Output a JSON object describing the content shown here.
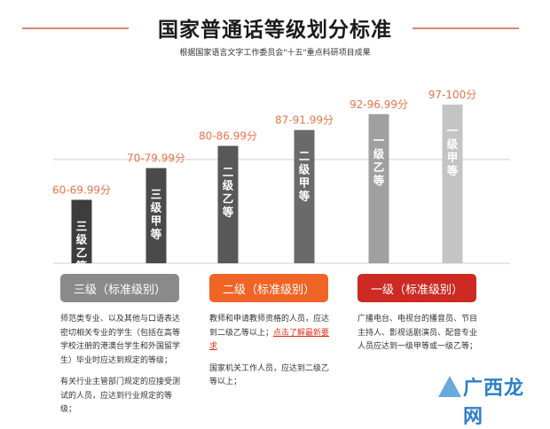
{
  "header": {
    "title": "国家普通话等级划分标准",
    "subtitle": "根据国家语言文字工作委员会\"十五\"重点科研项目成果"
  },
  "chart_data": {
    "type": "bar",
    "categories": [
      "三级乙等",
      "三级甲等",
      "二级乙等",
      "二级甲等",
      "一级乙等",
      "一级甲等"
    ],
    "value_labels": [
      "60-69.99分",
      "70-79.99分",
      "80-86.99分",
      "87-91.99分",
      "92-96.99分",
      "97-100分"
    ],
    "ranges": [
      [
        60,
        69.99
      ],
      [
        70,
        79.99
      ],
      [
        80,
        86.99
      ],
      [
        87,
        91.99
      ],
      [
        92,
        96.99
      ],
      [
        97,
        100
      ]
    ],
    "colors": [
      "#3d3d3d",
      "#4a4a4a",
      "#585858",
      "#6a6a6a",
      "#a0a0a0",
      "#c4c4c4"
    ],
    "label_color": "#e8744a"
  },
  "levels": [
    {
      "label": "三级（标准级别）",
      "color": "#8a8a8a"
    },
    {
      "label": "二级（标准级别）",
      "color": "#f06426"
    },
    {
      "label": "一级（标准级别）",
      "color": "#cc2a22"
    }
  ],
  "descriptions": {
    "level3": {
      "p1": "师范类专业、以及其他与口语表达密切相关专业的学生（包括在高等学校注册的港澳台学生和外国留学生）毕业时应达到规定的等级；",
      "p2": "有关行业主管部门规定的应接受测试的人员，应达到行业规定的等级；"
    },
    "level2": {
      "p1_text": "教师和申请教师资格的人员，应达到二级乙等以上；",
      "p1_link": "点击了解最新要求",
      "p2": "国家机关工作人员，应达到二级乙等以上；"
    },
    "level1": {
      "p1": "广播电台、电视台的播音员、节目主持人、影视话剧演员、配音专业人员应达到一级甲等或一级乙等；"
    }
  },
  "watermark": {
    "text": "广西龙网"
  }
}
